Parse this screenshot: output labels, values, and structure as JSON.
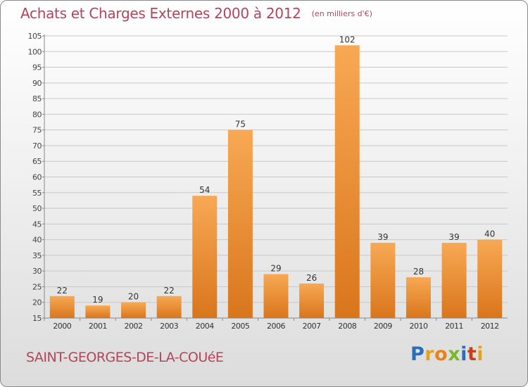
{
  "header": {
    "title": "Achats et Charges Externes 2000 à 2012",
    "unit": "(en milliers d'€)"
  },
  "footer": {
    "place": "SAINT-GEORGES-DE-LA-COUéE",
    "logo": "Proxiti",
    "logo_letters": [
      "P",
      "r",
      "o",
      "x",
      "i",
      "t",
      "i"
    ]
  },
  "colors": {
    "accent_text": "#b5435a",
    "bar_light": "#f8a854",
    "bar_dark": "#d9761c",
    "grid": "#c8c8c8"
  },
  "chart_data": {
    "type": "bar",
    "title": "Achats et Charges Externes 2000 à 2012",
    "subtitle": "(en milliers d'€)",
    "xlabel": "",
    "ylabel": "",
    "categories": [
      "2000",
      "2001",
      "2002",
      "2003",
      "2004",
      "2005",
      "2006",
      "2007",
      "2008",
      "2009",
      "2010",
      "2011",
      "2012"
    ],
    "values": [
      22,
      19,
      20,
      22,
      54,
      75,
      29,
      26,
      102,
      39,
      28,
      39,
      40
    ],
    "ylim": [
      15,
      105
    ],
    "yticks": [
      15,
      20,
      25,
      30,
      35,
      40,
      45,
      50,
      55,
      60,
      65,
      70,
      75,
      80,
      85,
      90,
      95,
      100,
      105
    ],
    "grid": true,
    "data_labels": true
  }
}
